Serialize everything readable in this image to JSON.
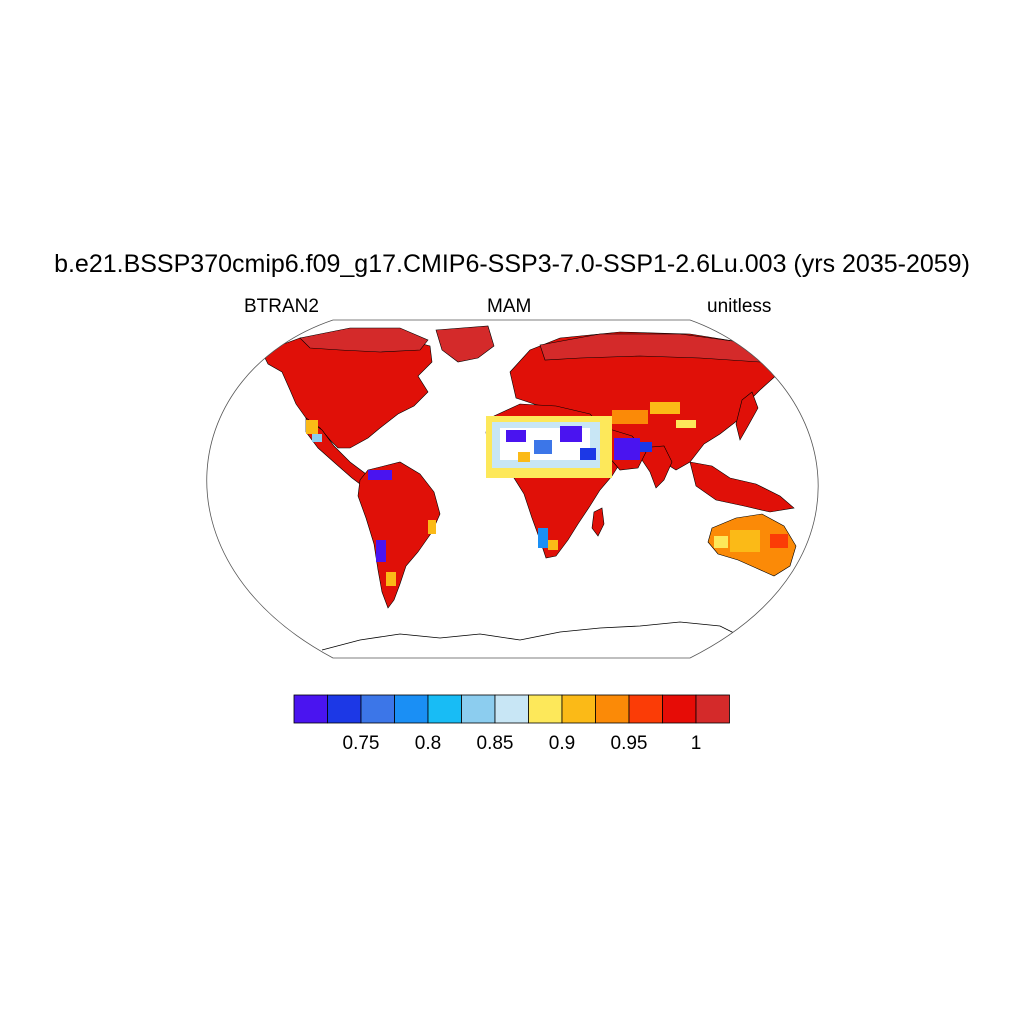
{
  "title": "b.e21.BSSP370cmip6.f09_g17.CMIP6-SSP3-7.0-SSP1-2.6Lu.003 (yrs 2035-2059)",
  "subtitle_left": "BTRAN2",
  "subtitle_center": "MAM",
  "subtitle_right": "unitless",
  "colorbar": {
    "colors": [
      "#4a14f0",
      "#1c38e6",
      "#3c76e8",
      "#1a8ff5",
      "#18bcf5",
      "#8ccdef",
      "#c8e6f5",
      "#fde85a",
      "#fbba17",
      "#fb8a07",
      "#fb3c06",
      "#e60c06",
      "#d42a2a"
    ],
    "labels": [
      "0.75",
      "0.8",
      "0.85",
      "0.9",
      "0.95",
      "1"
    ]
  },
  "colors": {
    "land_main": "#e01008",
    "land_dark": "#d42a2a",
    "coast": "#000000",
    "frame": "#555555"
  }
}
